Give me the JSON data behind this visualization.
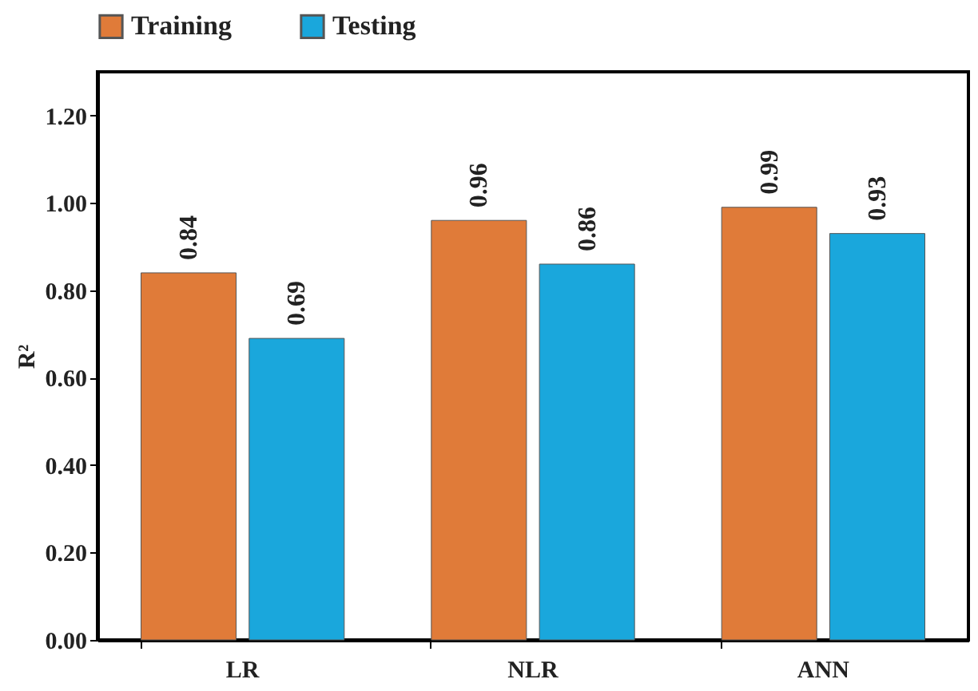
{
  "chart_data": {
    "type": "bar",
    "ylabel": "R²",
    "categories": [
      "LR",
      "NLR",
      "ANN"
    ],
    "series": [
      {
        "name": "Training",
        "color": "#e07b39",
        "values": [
          0.84,
          0.96,
          0.99
        ]
      },
      {
        "name": "Testing",
        "color": "#1aa7dc",
        "values": [
          0.69,
          0.86,
          0.93
        ]
      }
    ],
    "ylim": [
      0,
      1.3
    ],
    "yticks": [
      {
        "value": 0,
        "label": "0.00"
      },
      {
        "value": 0.2,
        "label": "0.20"
      },
      {
        "value": 0.4,
        "label": "0.40"
      },
      {
        "value": 0.6,
        "label": "0.60"
      },
      {
        "value": 0.8,
        "label": "0.80"
      },
      {
        "value": 1,
        "label": "1.00"
      },
      {
        "value": 1.2,
        "label": "1.20"
      }
    ],
    "data_labels": true,
    "legend": "top",
    "grid": false
  }
}
